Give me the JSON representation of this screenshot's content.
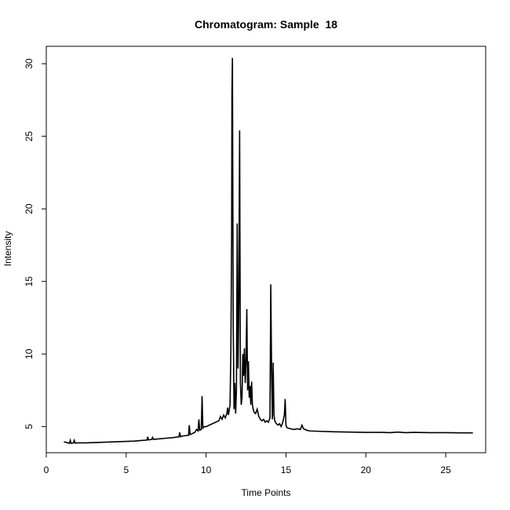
{
  "chart_data": {
    "type": "line",
    "title": "Chromatogram: Sample  18",
    "xlabel": "Time Points",
    "ylabel": "Intensity",
    "xlim": [
      0,
      27.5
    ],
    "ylim": [
      3.2,
      31.2
    ],
    "xticks": [
      0,
      5,
      10,
      15,
      20,
      25
    ],
    "yticks": [
      5,
      10,
      15,
      20,
      25,
      30
    ],
    "grid": false,
    "legend": "none",
    "line_color": "#000000",
    "series": [
      {
        "x": [
          1.1,
          1.3,
          1.45,
          1.5,
          1.55,
          1.6,
          1.7,
          1.75,
          1.8,
          2.0,
          2.5,
          3.0,
          3.5,
          4.0,
          4.5,
          5.0,
          5.5,
          6.0,
          6.3,
          6.35,
          6.4,
          6.5,
          6.6,
          6.65,
          6.7,
          7.0,
          7.5,
          8.0,
          8.3,
          8.35,
          8.4,
          8.5,
          8.9,
          8.95,
          9.0,
          9.1,
          9.3,
          9.4,
          9.5,
          9.55,
          9.6,
          9.7,
          9.75,
          9.8,
          9.9,
          10.0,
          10.2,
          10.4,
          10.6,
          10.8,
          10.9,
          11.0,
          11.1,
          11.2,
          11.3,
          11.35,
          11.4,
          11.5,
          11.55,
          11.6,
          11.62,
          11.65,
          11.7,
          11.75,
          11.8,
          11.85,
          11.9,
          11.95,
          12.0,
          12.05,
          12.1,
          12.15,
          12.2,
          12.25,
          12.3,
          12.35,
          12.4,
          12.45,
          12.5,
          12.55,
          12.6,
          12.65,
          12.7,
          12.75,
          12.8,
          12.85,
          12.9,
          12.95,
          13.0,
          13.1,
          13.2,
          13.3,
          13.4,
          13.5,
          13.6,
          13.7,
          13.8,
          13.9,
          14.0,
          14.05,
          14.1,
          14.15,
          14.2,
          14.25,
          14.3,
          14.4,
          14.5,
          14.6,
          14.7,
          14.8,
          14.9,
          14.95,
          15.0,
          15.05,
          15.1,
          15.3,
          15.5,
          15.7,
          15.9,
          16.0,
          16.1,
          16.3,
          16.5,
          17.0,
          18.0,
          19.0,
          20.0,
          21.0,
          21.5,
          22.0,
          22.5,
          23.0,
          24.0,
          25.0,
          26.0,
          26.7
        ],
        "y": [
          3.95,
          3.9,
          3.85,
          4.05,
          3.85,
          3.85,
          3.88,
          4.05,
          3.87,
          3.88,
          3.88,
          3.9,
          3.92,
          3.94,
          3.96,
          3.98,
          4.0,
          4.05,
          4.07,
          4.3,
          4.08,
          4.1,
          4.12,
          4.25,
          4.12,
          4.15,
          4.2,
          4.25,
          4.3,
          4.6,
          4.3,
          4.35,
          4.4,
          5.1,
          4.45,
          4.5,
          4.6,
          4.8,
          4.7,
          5.5,
          4.75,
          4.8,
          7.1,
          4.9,
          5.0,
          5.0,
          5.1,
          5.2,
          5.3,
          5.4,
          5.7,
          5.5,
          5.8,
          5.6,
          5.9,
          6.3,
          5.8,
          6.5,
          10.0,
          18.0,
          28.0,
          30.4,
          12.0,
          6.2,
          8.0,
          5.9,
          7.5,
          19.0,
          9.0,
          13.5,
          25.4,
          8.0,
          6.5,
          7.0,
          10.0,
          8.5,
          10.4,
          8.0,
          9.5,
          13.1,
          7.5,
          9.5,
          7.0,
          7.8,
          6.5,
          8.1,
          6.5,
          6.2,
          6.0,
          5.9,
          6.2,
          5.7,
          5.5,
          5.4,
          5.5,
          5.3,
          5.4,
          5.3,
          5.6,
          14.8,
          9.0,
          5.5,
          9.4,
          5.8,
          5.4,
          5.2,
          5.1,
          5.2,
          5.0,
          5.3,
          5.8,
          6.9,
          5.1,
          4.95,
          4.9,
          4.85,
          4.8,
          4.85,
          4.8,
          5.1,
          4.85,
          4.75,
          4.7,
          4.68,
          4.64,
          4.62,
          4.6,
          4.6,
          4.58,
          4.62,
          4.58,
          4.6,
          4.58,
          4.58,
          4.57,
          4.57
        ]
      }
    ]
  }
}
